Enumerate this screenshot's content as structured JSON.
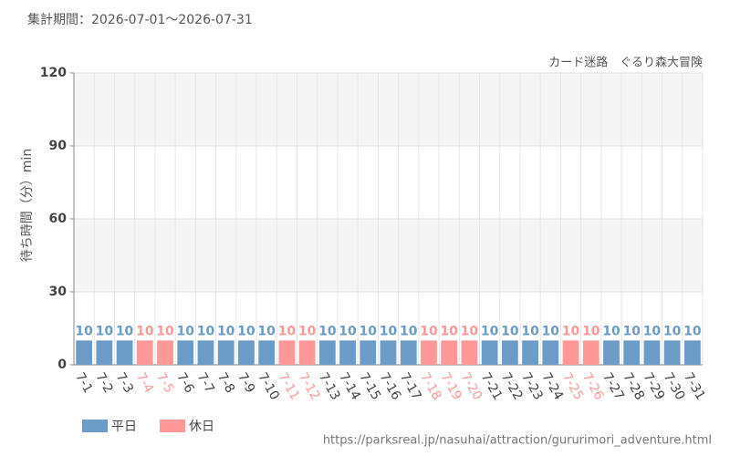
{
  "chart_data": {
    "type": "bar",
    "title": "集計期間：2026-07-01～2026-07-31",
    "subtitle": "カード迷路　ぐるり森大冒険",
    "ylabel": "待ち時間（分）min",
    "source": "https://parksreal.jp/nasuhai/attraction/gururimori_adventure.html",
    "categories": [
      "7-1",
      "7-2",
      "7-3",
      "7-4",
      "7-5",
      "7-6",
      "7-7",
      "7-8",
      "7-9",
      "7-10",
      "7-11",
      "7-12",
      "7-13",
      "7-14",
      "7-15",
      "7-16",
      "7-17",
      "7-18",
      "7-19",
      "7-20",
      "7-21",
      "7-22",
      "7-23",
      "7-24",
      "7-25",
      "7-26",
      "7-27",
      "7-28",
      "7-29",
      "7-30",
      "7-31"
    ],
    "series": [
      {
        "name": "平日",
        "color": "#6b9bc7",
        "values": [
          10,
          10,
          10,
          null,
          null,
          10,
          10,
          10,
          10,
          10,
          null,
          null,
          10,
          10,
          10,
          10,
          10,
          null,
          null,
          null,
          10,
          10,
          10,
          10,
          null,
          null,
          10,
          10,
          10,
          10,
          10
        ]
      },
      {
        "name": "休日",
        "color": "#ff9999",
        "values": [
          null,
          null,
          null,
          10,
          10,
          null,
          null,
          null,
          null,
          null,
          10,
          10,
          null,
          null,
          null,
          null,
          null,
          10,
          10,
          10,
          null,
          null,
          null,
          null,
          10,
          10,
          null,
          null,
          null,
          null,
          null
        ]
      }
    ],
    "ylim": [
      0,
      120
    ],
    "yticks": [
      0,
      30,
      60,
      90,
      120
    ],
    "grid": true
  }
}
